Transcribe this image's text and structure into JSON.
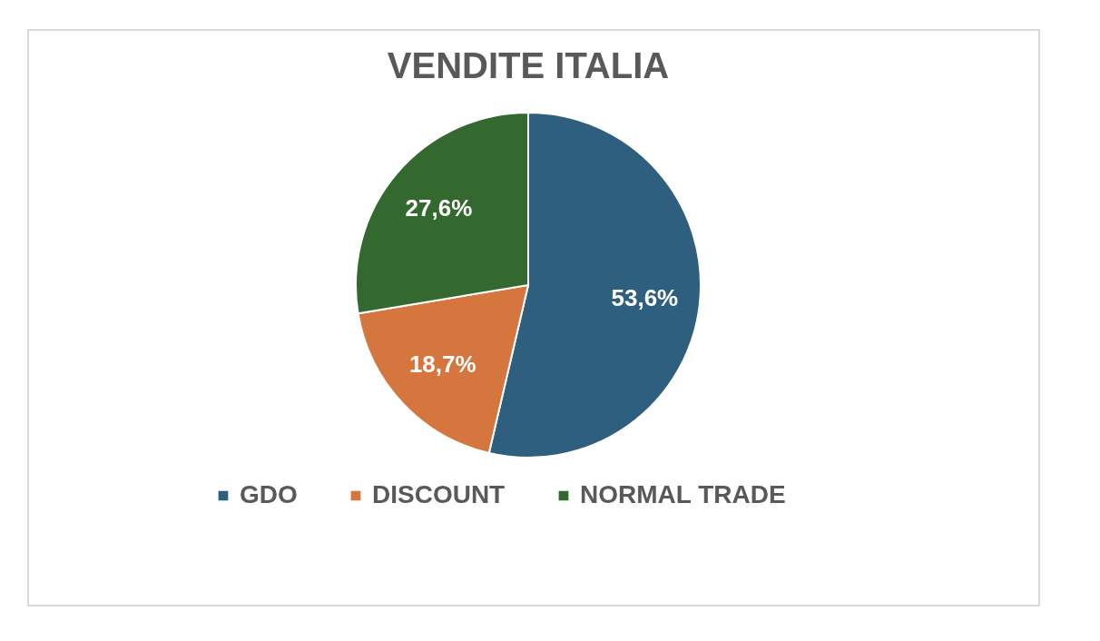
{
  "chart_data": {
    "type": "pie",
    "title": "VENDITE ITALIA",
    "categories": [
      "GDO",
      "DISCOUNT",
      "NORMAL TRADE"
    ],
    "values": [
      53.6,
      18.7,
      27.6
    ],
    "colors": [
      "#2e5f7f",
      "#d6763f",
      "#33692f"
    ],
    "value_labels": [
      "53,6%",
      "18,7%",
      "27,6%"
    ],
    "legend": "bottom"
  }
}
